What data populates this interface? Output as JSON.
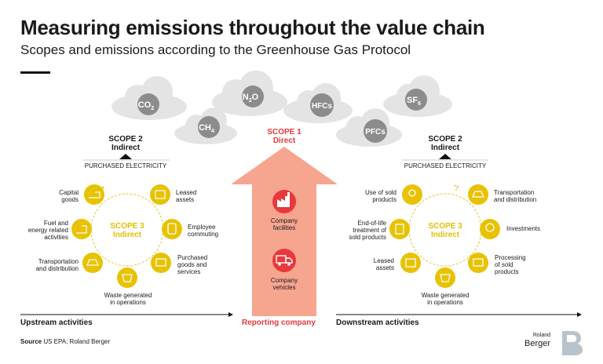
{
  "header": {
    "title": "Measuring emissions throughout the value chain",
    "subtitle": "Scopes and emissions according to the Greenhouse Gas Protocol"
  },
  "gases": [
    "CO2",
    "CH4",
    "N2O",
    "HFCs",
    "PFCs",
    "SF6"
  ],
  "left": {
    "scope2_title": "SCOPE 2",
    "scope2_sub": "Indirect",
    "purchased": "PURCHASED ELECTRICITY",
    "scope3_title": "SCOPE 3",
    "scope3_sub": "Indirect",
    "items": {
      "capital_goods": "Capital\ngoods",
      "leased_assets": "Leased\nassets",
      "fuel": "Fuel and\nenergy related\nactivities",
      "commuting": "Employee\ncommuting",
      "transport": "Transportation\nand distribution",
      "purchased_goods": "Purchased\ngoods and\nservices",
      "waste": "Waste generated\nin operations"
    }
  },
  "center": {
    "scope1_title": "SCOPE 1",
    "scope1_sub": "Direct",
    "facilities": "Company\nfacilities",
    "vehicles": "Company\nvehicles"
  },
  "right": {
    "scope2_title": "SCOPE 2",
    "scope2_sub": "Indirect",
    "purchased": "PURCHASED ELECTRICITY",
    "scope3_title": "SCOPE 3",
    "scope3_sub": "Indirect",
    "items": {
      "use_sold": "Use of sold\nproducts",
      "transport": "Transportation\nand distribution",
      "end_of_life": "End-of-life\ntreatment of\nsold products",
      "investments": "Investments",
      "leased_assets": "Leased\nassets",
      "processing": "Processing\nof sold\nproducts",
      "waste": "Waste generated\nin operations"
    }
  },
  "footer": {
    "upstream": "Upstream activities",
    "reporting": "Reporting company",
    "downstream": "Downstream activities",
    "source_label": "Source",
    "source_text": " US EPA; Roland Berger",
    "brand_top": "Roland",
    "brand_bottom": "Berger"
  },
  "colors": {
    "yellow": "#e8c200",
    "red": "#e8383b",
    "salmon": "#f6a58f",
    "cloud": "#e4e4e4",
    "gas_circle": "#8c8c8c",
    "gold_ring": "#e3c63a"
  }
}
